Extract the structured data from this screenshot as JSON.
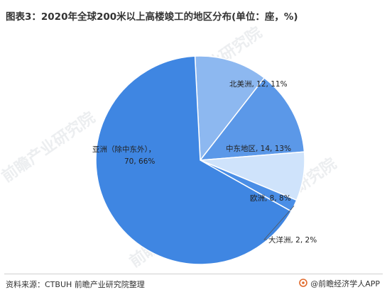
{
  "title": "图表3：2020年全球200米以上高楼竣工的地区分布(单位：座，%)",
  "footer": {
    "source": "资料来源：CTBUH 前瞻产业研究院整理",
    "brand": "@前瞻经济学人APP"
  },
  "watermark": "前瞻产业研究院",
  "colors": {
    "asia": "#3f86e2",
    "north_america": "#8db8f0",
    "middle_east": "#5b98e8",
    "europe": "#cfe3fb",
    "oceania": "#4a8ee6",
    "leader": "#555555"
  },
  "chart_data": {
    "type": "pie",
    "title": "2020年全球200米以上高楼竣工的地区分布(单位：座，%)",
    "slices": [
      {
        "name": "北美洲",
        "value": 12,
        "percent": 11,
        "label": "北美洲, 12, 11%",
        "color": "#8db8f0"
      },
      {
        "name": "中东地区",
        "value": 14,
        "percent": 13,
        "label": "中东地区, 14, 13%",
        "color": "#5b98e8"
      },
      {
        "name": "欧洲",
        "value": 8,
        "percent": 8,
        "label": "欧洲, 8, 8%",
        "color": "#cfe3fb"
      },
      {
        "name": "大洋洲",
        "value": 2,
        "percent": 2,
        "label": "大洋洲, 2, 2%",
        "color": "#4a8ee6"
      },
      {
        "name": "亚洲（除中东外）",
        "value": 70,
        "percent": 66,
        "label_line1": "亚洲（除中东外），",
        "label_line2": "70, 66%",
        "color": "#3f86e2"
      }
    ]
  }
}
